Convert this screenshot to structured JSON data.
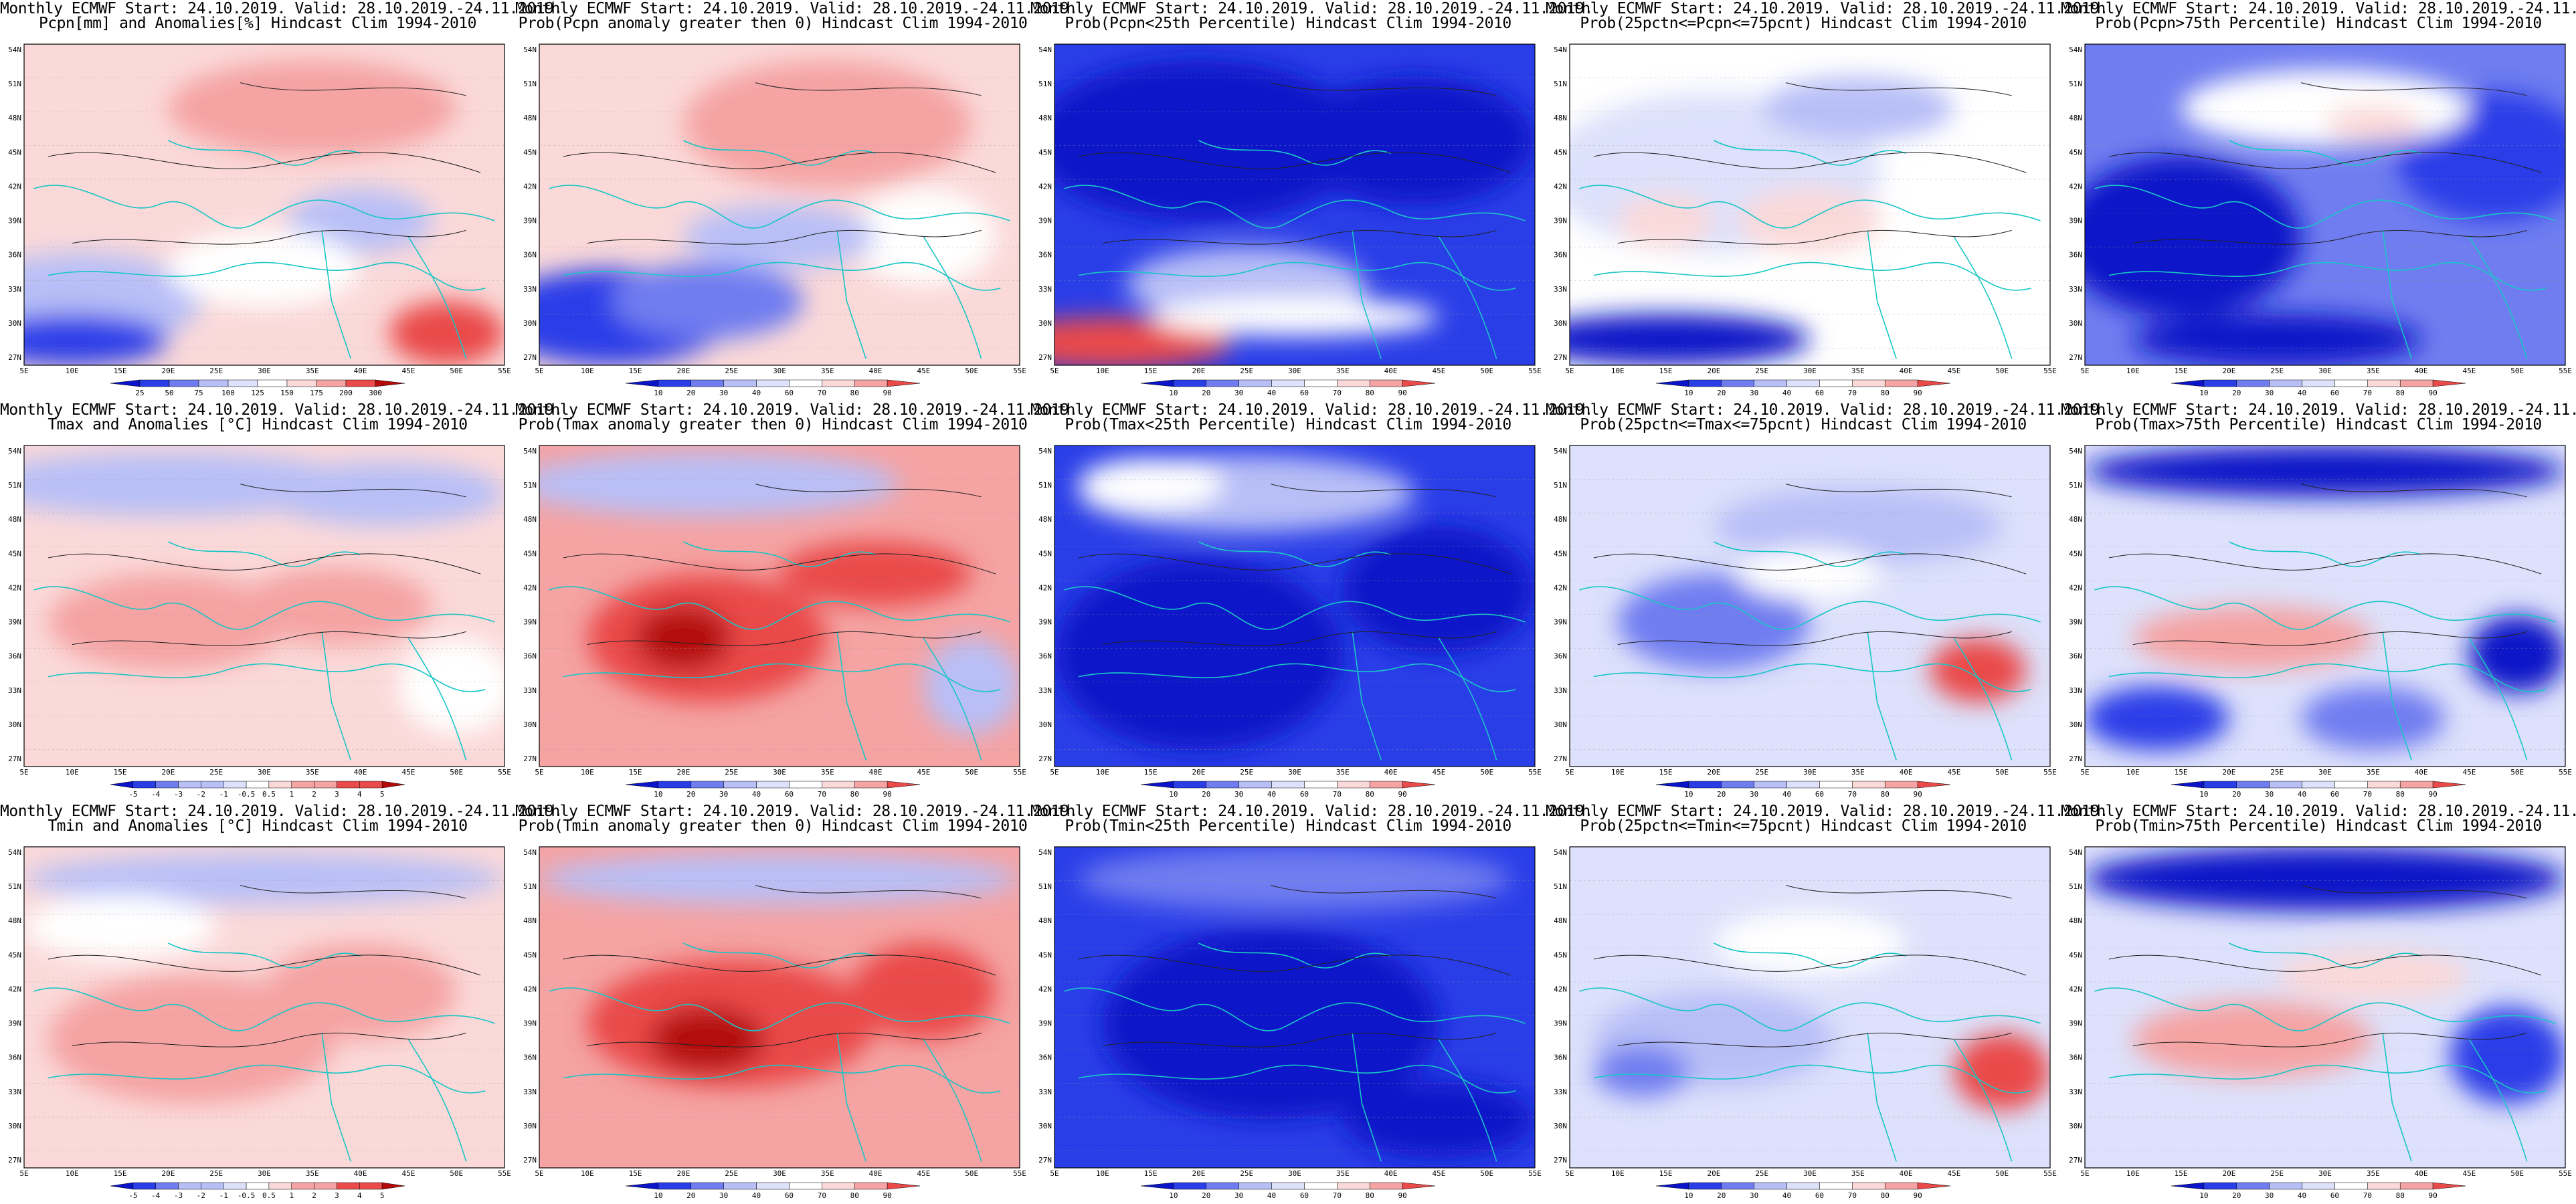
{
  "common": {
    "title_line1": "Monthly ECMWF Start: 24.10.2019. Valid: 28.10.2019.-24.11.2019.",
    "lat_labels": [
      "54N",
      "51N",
      "48N",
      "45N",
      "42N",
      "39N",
      "36N",
      "33N",
      "30N",
      "27N"
    ],
    "lon_labels": [
      "5E",
      "10E",
      "15E",
      "20E",
      "25E",
      "30E",
      "35E",
      "40E",
      "45E",
      "50E",
      "55E"
    ],
    "prob_colorbar_labels": [
      "10",
      "20",
      "30",
      "40",
      "60",
      "70",
      "80",
      "90"
    ],
    "colors": {
      "deep_blue": "#0b14c8",
      "blue": "#2a3ee8",
      "mid_blue": "#6f7df0",
      "light_blue": "#b8bff7",
      "pale_blue": "#dde1fb",
      "white": "#ffffff",
      "pale_red": "#fbd9d9",
      "light_red": "#f5a3a3",
      "red": "#ea4a4a",
      "deep_red": "#b40a0a",
      "coast": "#19c6c6",
      "contour": "#222222"
    }
  },
  "panels": [
    {
      "title_line2": "Pcpn[mm] and Anomalies[%] Hindcast Clim 1994-2010",
      "colorbar_labels": [
        "25",
        "50",
        "75",
        "100",
        "125",
        "150",
        "175",
        "200",
        "300"
      ],
      "base": "pale_red",
      "blobs": [
        [
          "light_blue",
          0.12,
          0.8,
          0.25,
          0.15
        ],
        [
          "blue",
          0.1,
          0.92,
          0.2,
          0.08
        ],
        [
          "light_red",
          0.6,
          0.2,
          0.3,
          0.15
        ],
        [
          "red",
          0.88,
          0.9,
          0.12,
          0.1
        ],
        [
          "light_blue",
          0.7,
          0.55,
          0.15,
          0.1
        ],
        [
          "white",
          0.5,
          0.7,
          0.2,
          0.12
        ]
      ]
    },
    {
      "title_line2": "Prob(Pcpn anomaly greater then 0) Hindcast Clim 1994-2010",
      "colorbar_labels": [
        "10",
        "20",
        "30",
        "40",
        "60",
        "70",
        "80",
        "90"
      ],
      "base": "pale_red",
      "blobs": [
        [
          "blue",
          0.15,
          0.85,
          0.25,
          0.15
        ],
        [
          "mid_blue",
          0.35,
          0.8,
          0.2,
          0.12
        ],
        [
          "light_red",
          0.6,
          0.25,
          0.3,
          0.2
        ],
        [
          "white",
          0.8,
          0.6,
          0.15,
          0.15
        ],
        [
          "light_blue",
          0.5,
          0.6,
          0.2,
          0.1
        ]
      ]
    },
    {
      "title_line2": "Prob(Pcpn<25th Percentile) Hindcast Clim 1994-2010",
      "colorbar_labels": [
        "10",
        "20",
        "30",
        "40",
        "60",
        "70",
        "80",
        "90"
      ],
      "base": "blue",
      "blobs": [
        [
          "deep_blue",
          0.3,
          0.3,
          0.35,
          0.25
        ],
        [
          "deep_blue",
          0.75,
          0.3,
          0.25,
          0.2
        ],
        [
          "light_blue",
          0.4,
          0.75,
          0.25,
          0.12
        ],
        [
          "red",
          0.12,
          0.93,
          0.25,
          0.08
        ],
        [
          "white",
          0.5,
          0.85,
          0.3,
          0.06
        ]
      ]
    },
    {
      "title_line2": "Prob(25pctn<=Pcpn<=75pcnt) Hindcast Clim 1994-2010",
      "colorbar_labels": [
        "10",
        "20",
        "30",
        "40",
        "60",
        "70",
        "80",
        "90"
      ],
      "base": "white",
      "blobs": [
        [
          "pale_blue",
          0.3,
          0.4,
          0.35,
          0.25
        ],
        [
          "deep_blue",
          0.2,
          0.92,
          0.3,
          0.08
        ],
        [
          "pale_red",
          0.5,
          0.55,
          0.15,
          0.1
        ],
        [
          "pale_red",
          0.2,
          0.55,
          0.1,
          0.08
        ],
        [
          "light_blue",
          0.6,
          0.2,
          0.2,
          0.1
        ]
      ]
    },
    {
      "title_line2": "Prob(Pcpn>75th Percentile) Hindcast Clim 1994-2010",
      "colorbar_labels": [
        "10",
        "20",
        "30",
        "40",
        "60",
        "70",
        "80",
        "90"
      ],
      "base": "mid_blue",
      "blobs": [
        [
          "deep_blue",
          0.2,
          0.6,
          0.25,
          0.25
        ],
        [
          "blue",
          0.85,
          0.35,
          0.2,
          0.2
        ],
        [
          "white",
          0.5,
          0.2,
          0.3,
          0.12
        ],
        [
          "deep_blue",
          0.4,
          0.92,
          0.3,
          0.08
        ],
        [
          "pale_red",
          0.6,
          0.25,
          0.1,
          0.06
        ]
      ]
    },
    {
      "title_line2": "Tmax and Anomalies [°C] Hindcast Clim 1994-2010",
      "colorbar_labels": [
        "-5",
        "-4",
        "-3",
        "-2",
        "-1",
        "-0.5",
        "0.5",
        "1",
        "2",
        "3",
        "4",
        "5"
      ],
      "base": "pale_red",
      "blobs": [
        [
          "light_blue",
          0.3,
          0.12,
          0.4,
          0.1
        ],
        [
          "light_blue",
          0.75,
          0.15,
          0.25,
          0.1
        ],
        [
          "light_red",
          0.3,
          0.55,
          0.25,
          0.15
        ],
        [
          "light_red",
          0.65,
          0.5,
          0.2,
          0.12
        ],
        [
          "white",
          0.9,
          0.75,
          0.12,
          0.15
        ]
      ]
    },
    {
      "title_line2": "Prob(Tmax anomaly greater then 0) Hindcast Clim 1994-2010",
      "colorbar_labels": [
        "10",
        "20",
        "30",
        "40",
        "60",
        "70",
        "80",
        "90"
      ],
      "base": "light_red",
      "blobs": [
        [
          "red",
          0.35,
          0.6,
          0.25,
          0.2
        ],
        [
          "deep_red",
          0.3,
          0.6,
          0.1,
          0.1
        ],
        [
          "light_blue",
          0.35,
          0.12,
          0.4,
          0.1
        ],
        [
          "red",
          0.7,
          0.4,
          0.2,
          0.1
        ],
        [
          "light_blue",
          0.9,
          0.75,
          0.1,
          0.15
        ]
      ]
    },
    {
      "title_line2": "Prob(Tmax<25th Percentile) Hindcast Clim 1994-2010",
      "colorbar_labels": [
        "10",
        "20",
        "30",
        "40",
        "60",
        "70",
        "80",
        "90"
      ],
      "base": "blue",
      "blobs": [
        [
          "deep_blue",
          0.3,
          0.65,
          0.3,
          0.3
        ],
        [
          "deep_blue",
          0.8,
          0.45,
          0.2,
          0.2
        ],
        [
          "light_blue",
          0.4,
          0.15,
          0.35,
          0.12
        ],
        [
          "white",
          0.2,
          0.12,
          0.15,
          0.08
        ]
      ]
    },
    {
      "title_line2": "Prob(25pctn<=Tmax<=75pcnt) Hindcast Clim 1994-2010",
      "colorbar_labels": [
        "10",
        "20",
        "30",
        "40",
        "60",
        "70",
        "80",
        "90"
      ],
      "base": "pale_blue",
      "blobs": [
        [
          "mid_blue",
          0.3,
          0.55,
          0.2,
          0.15
        ],
        [
          "light_blue",
          0.6,
          0.25,
          0.3,
          0.12
        ],
        [
          "red",
          0.85,
          0.7,
          0.1,
          0.1
        ],
        [
          "white",
          0.5,
          0.4,
          0.15,
          0.08
        ]
      ]
    },
    {
      "title_line2": "Prob(Tmax>75th Percentile) Hindcast Clim 1994-2010",
      "colorbar_labels": [
        "10",
        "20",
        "30",
        "40",
        "60",
        "70",
        "80",
        "90"
      ],
      "base": "pale_blue",
      "blobs": [
        [
          "deep_blue",
          0.5,
          0.08,
          0.5,
          0.08
        ],
        [
          "light_red",
          0.35,
          0.6,
          0.25,
          0.1
        ],
        [
          "deep_blue",
          0.9,
          0.65,
          0.1,
          0.12
        ],
        [
          "blue",
          0.15,
          0.85,
          0.15,
          0.1
        ],
        [
          "mid_blue",
          0.6,
          0.85,
          0.15,
          0.1
        ]
      ]
    },
    {
      "title_line2": "Tmin and Anomalies [°C] Hindcast Clim 1994-2010",
      "colorbar_labels": [
        "-5",
        "-4",
        "-3",
        "-2",
        "-1",
        "-0.5",
        "0.5",
        "1",
        "2",
        "3",
        "4",
        "5"
      ],
      "base": "pale_red",
      "blobs": [
        [
          "light_blue",
          0.5,
          0.1,
          0.5,
          0.08
        ],
        [
          "light_red",
          0.35,
          0.6,
          0.3,
          0.2
        ],
        [
          "light_red",
          0.7,
          0.45,
          0.2,
          0.15
        ],
        [
          "white",
          0.2,
          0.25,
          0.2,
          0.1
        ]
      ]
    },
    {
      "title_line2": "Prob(Tmin anomaly greater then 0) Hindcast Clim 1994-2010",
      "colorbar_labels": [
        "10",
        "20",
        "30",
        "40",
        "60",
        "70",
        "80",
        "90"
      ],
      "base": "light_red",
      "blobs": [
        [
          "red",
          0.4,
          0.55,
          0.3,
          0.2
        ],
        [
          "deep_red",
          0.35,
          0.6,
          0.12,
          0.1
        ],
        [
          "light_blue",
          0.5,
          0.1,
          0.5,
          0.08
        ],
        [
          "red",
          0.8,
          0.45,
          0.15,
          0.15
        ]
      ]
    },
    {
      "title_line2": "Prob(Tmin<25th Percentile) Hindcast Clim 1994-2010",
      "colorbar_labels": [
        "10",
        "20",
        "30",
        "40",
        "60",
        "70",
        "80",
        "90"
      ],
      "base": "blue",
      "blobs": [
        [
          "deep_blue",
          0.45,
          0.55,
          0.35,
          0.3
        ],
        [
          "mid_blue",
          0.5,
          0.1,
          0.45,
          0.1
        ],
        [
          "deep_blue",
          0.8,
          0.85,
          0.2,
          0.12
        ]
      ]
    },
    {
      "title_line2": "Prob(25pctn<=Tmin<=75pcnt) Hindcast Clim 1994-2010",
      "colorbar_labels": [
        "10",
        "20",
        "30",
        "40",
        "60",
        "70",
        "80",
        "90"
      ],
      "base": "pale_blue",
      "blobs": [
        [
          "light_blue",
          0.3,
          0.6,
          0.25,
          0.15
        ],
        [
          "mid_blue",
          0.15,
          0.7,
          0.1,
          0.08
        ],
        [
          "red",
          0.9,
          0.7,
          0.1,
          0.12
        ],
        [
          "white",
          0.5,
          0.3,
          0.2,
          0.1
        ]
      ]
    },
    {
      "title_line2": "Prob(Tmin>75th Percentile) Hindcast Clim 1994-2010",
      "colorbar_labels": [
        "10",
        "20",
        "30",
        "40",
        "60",
        "70",
        "80",
        "90"
      ],
      "base": "pale_blue",
      "blobs": [
        [
          "deep_blue",
          0.5,
          0.1,
          0.5,
          0.1
        ],
        [
          "light_red",
          0.35,
          0.6,
          0.25,
          0.12
        ],
        [
          "blue",
          0.88,
          0.65,
          0.12,
          0.15
        ],
        [
          "pale_red",
          0.6,
          0.4,
          0.2,
          0.08
        ]
      ]
    }
  ]
}
